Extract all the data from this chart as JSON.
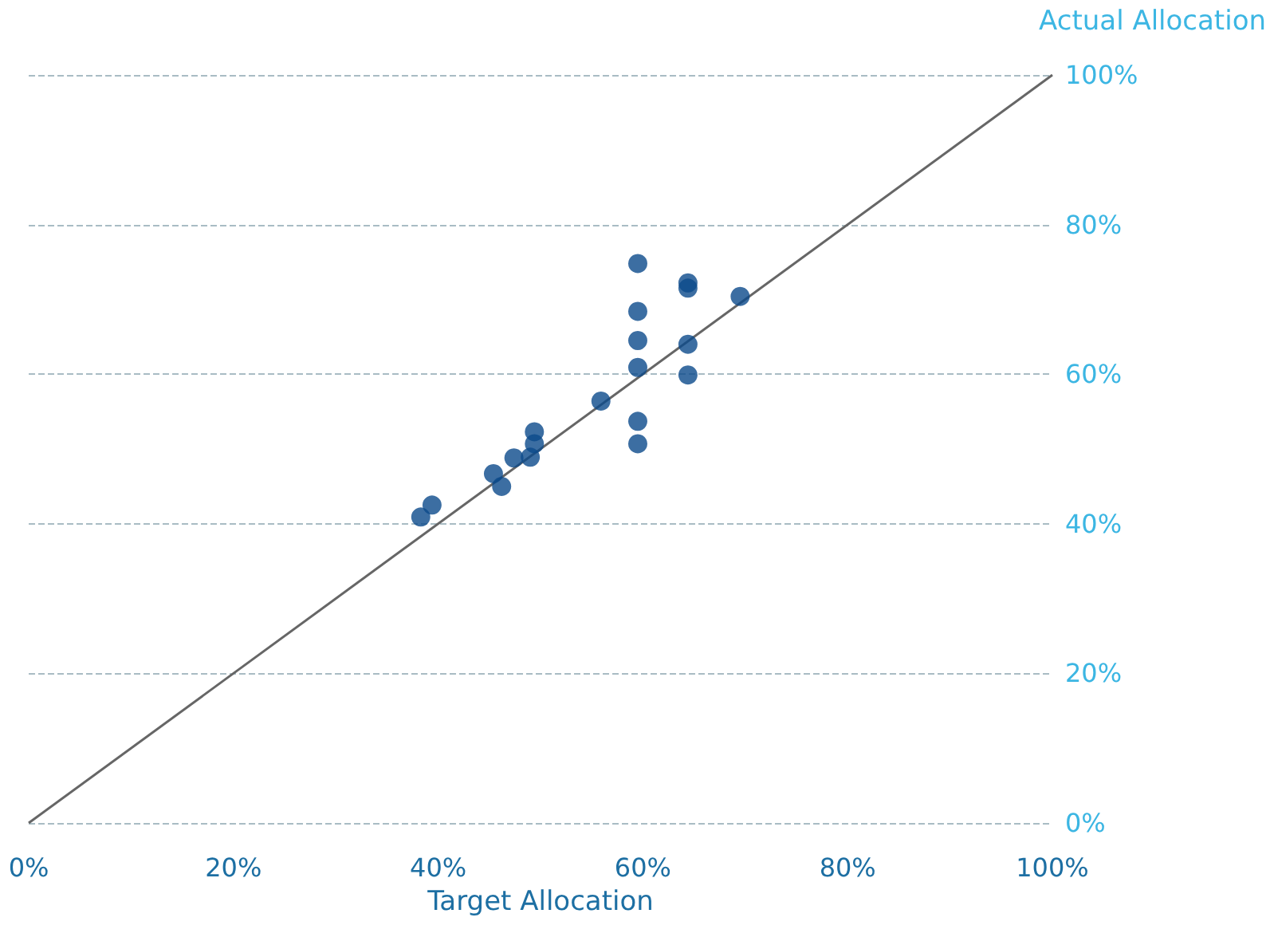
{
  "chart_data": {
    "type": "scatter",
    "xlabel": "Target Allocation",
    "ylabel": "Actual Allocation",
    "xlim": [
      0,
      100
    ],
    "ylim": [
      0,
      100
    ],
    "xticks": [
      {
        "value": 0,
        "label": "0%"
      },
      {
        "value": 20,
        "label": "20%"
      },
      {
        "value": 40,
        "label": "40%"
      },
      {
        "value": 60,
        "label": "60%"
      },
      {
        "value": 80,
        "label": "80%"
      },
      {
        "value": 100,
        "label": "100%"
      }
    ],
    "yticks": [
      {
        "value": 0,
        "label": "0%"
      },
      {
        "value": 20,
        "label": "20%"
      },
      {
        "value": 40,
        "label": "40%"
      },
      {
        "value": 60,
        "label": "60%"
      },
      {
        "value": 80,
        "label": "80%"
      },
      {
        "value": 100,
        "label": "100%"
      }
    ],
    "grid": "y",
    "marker": "circle",
    "series": [
      {
        "color": "#0b4a8b",
        "x": [
          59.5,
          64.4,
          64.4,
          69.5,
          59.5,
          59.5,
          64.4,
          59.5,
          64.4,
          55.9,
          59.5,
          59.5,
          49.4,
          49.4,
          49.0,
          47.4,
          45.4,
          46.2,
          39.4,
          38.3
        ],
        "values": [
          74.8,
          72.2,
          71.5,
          70.4,
          68.4,
          64.5,
          64.0,
          60.9,
          59.9,
          56.4,
          53.7,
          50.7,
          52.3,
          50.7,
          48.9,
          48.8,
          46.7,
          45.0,
          42.5,
          40.9
        ]
      },
      {
        "type": "line",
        "color": "#666666",
        "x": [
          0,
          100
        ],
        "values": [
          0,
          100
        ],
        "marker": "none"
      }
    ]
  }
}
